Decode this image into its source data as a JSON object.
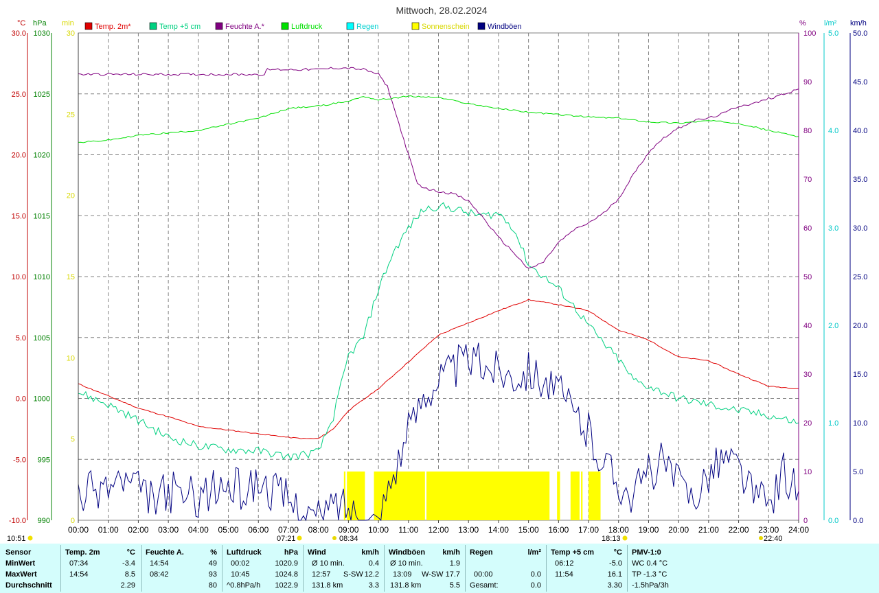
{
  "title": "Mittwoch, 28.02.2024",
  "legend": [
    {
      "label": "Temp. 2m*",
      "color": "#e00000"
    },
    {
      "label": "Temp +5 cm",
      "color": "#00d080"
    },
    {
      "label": "Feuchte A.*",
      "color": "#800080"
    },
    {
      "label": "Luftdruck",
      "color": "#00e000"
    },
    {
      "label": "Regen",
      "color": "#00ffff"
    },
    {
      "label": "Sonnenschein",
      "color": "#ffff00"
    },
    {
      "label": "Windböen",
      "color": "#000080"
    }
  ],
  "axis_units": {
    "temp": "°C",
    "pressure": "hPa",
    "sun": "min",
    "humidity": "%",
    "rain": "l/m²",
    "wind": "km/h"
  },
  "sun_events": {
    "sunrise": "07:21",
    "noon": "08:34",
    "sunset": "18:13",
    "moonrise": "10:51",
    "moonset": "22:40"
  },
  "colors": {
    "grid": "#808080",
    "temp_axis": "#c00000",
    "pressure_axis": "#008000",
    "sun_axis": "#d8d800",
    "hum_axis": "#800080",
    "rain_axis": "#00c8c8",
    "wind_axis": "#000080",
    "stats_bg": "#d4fdfc"
  },
  "chart_data": {
    "type": "line",
    "x_ticks": [
      "00:00",
      "01:00",
      "02:00",
      "03:00",
      "04:00",
      "05:00",
      "06:00",
      "07:00",
      "08:00",
      "09:00",
      "10:00",
      "11:00",
      "12:00",
      "13:00",
      "14:00",
      "15:00",
      "16:00",
      "17:00",
      "18:00",
      "19:00",
      "20:00",
      "21:00",
      "22:00",
      "23:00",
      "24:00"
    ],
    "axes": {
      "temp": {
        "unit": "°C",
        "range": [
          -10,
          30
        ],
        "ticks": [
          "30.0",
          "25.0",
          "20.0",
          "15.0",
          "10.0",
          "5.0",
          "0.0",
          "-5.0",
          "-10.0"
        ]
      },
      "pressure": {
        "unit": "hPa",
        "range": [
          990,
          1030
        ],
        "ticks": [
          "1030",
          "1025",
          "1020",
          "1015",
          "1010",
          "1005",
          "1000",
          "995",
          "990"
        ]
      },
      "sun": {
        "unit": "min",
        "range": [
          0,
          30
        ],
        "ticks": [
          "30",
          "25",
          "20",
          "15",
          "10",
          "5",
          "0"
        ]
      },
      "humidity": {
        "unit": "%",
        "range": [
          0,
          100
        ],
        "ticks": [
          "100",
          "90",
          "80",
          "70",
          "60",
          "50",
          "40",
          "30",
          "20",
          "10",
          "0"
        ]
      },
      "rain": {
        "unit": "l/m²",
        "range": [
          0,
          5
        ],
        "ticks": [
          "5.0",
          "4.0",
          "3.0",
          "2.0",
          "1.0",
          "0.0"
        ]
      },
      "wind": {
        "unit": "km/h",
        "range": [
          0,
          50
        ],
        "ticks": [
          "50.0",
          "45.0",
          "40.0",
          "35.0",
          "30.0",
          "25.0",
          "20.0",
          "15.0",
          "10.0",
          "5.0",
          "0.0"
        ]
      }
    },
    "series": [
      {
        "name": "Temp. 2m*",
        "axis": "temp",
        "color": "#e00000",
        "x": [
          0,
          1,
          2,
          3,
          4,
          5,
          6,
          7,
          7.5,
          8,
          8.5,
          9,
          10,
          11,
          12,
          13,
          14,
          15,
          16,
          17,
          18,
          19,
          20,
          21,
          22,
          23,
          24
        ],
        "values": [
          1.2,
          0.2,
          -0.8,
          -1.5,
          -2.3,
          -2.6,
          -2.9,
          -3.2,
          -3.3,
          -3.3,
          -2.5,
          -1.0,
          0.8,
          3.0,
          5.2,
          6.2,
          7.2,
          8.1,
          7.7,
          7.2,
          5.6,
          4.8,
          3.4,
          3.1,
          2.0,
          1.0,
          0.8
        ]
      },
      {
        "name": "Temp +5 cm",
        "axis": "temp",
        "color": "#00d080",
        "x": [
          0,
          1,
          2,
          3,
          4,
          5,
          6,
          7,
          8,
          8.5,
          9,
          9.5,
          10,
          10.5,
          11,
          11.5,
          12,
          12.5,
          13,
          13.5,
          14,
          14.5,
          15,
          15.5,
          16,
          16.5,
          17,
          17.5,
          18,
          18.5,
          19,
          20,
          21,
          22,
          23,
          24
        ],
        "values": [
          0.5,
          -0.5,
          -1.8,
          -3.2,
          -3.9,
          -4.2,
          -4.3,
          -4.8,
          -4.4,
          -1.5,
          3.5,
          5.0,
          9.0,
          12.0,
          14.0,
          15.5,
          15.8,
          15.6,
          15.2,
          15.0,
          15.2,
          14.0,
          11.0,
          10.0,
          9.0,
          7.6,
          6.0,
          4.5,
          3.2,
          1.5,
          1.0,
          0.0,
          -0.5,
          -1.0,
          -1.4,
          -2.0
        ]
      },
      {
        "name": "Feuchte A.*",
        "axis": "humidity",
        "color": "#800080",
        "x": [
          0,
          2,
          4,
          6.2,
          6.3,
          7,
          8,
          8.5,
          9,
          9.5,
          10,
          10.3,
          10.6,
          11,
          11.3,
          11.6,
          12,
          12.5,
          13,
          13.5,
          14,
          14.5,
          15,
          15.5,
          16,
          16.5,
          17,
          17.5,
          18,
          18.5,
          19,
          19.5,
          20,
          20.5,
          21,
          21.5,
          22,
          22.5,
          23,
          23.5,
          24
        ],
        "values": [
          91.5,
          91.5,
          91.5,
          91.5,
          92.5,
          92.5,
          92.5,
          92.8,
          92.8,
          92.5,
          91.5,
          89.0,
          83.0,
          75.0,
          69.0,
          68.0,
          67.5,
          67.0,
          65.5,
          62.0,
          58.0,
          55.0,
          51.5,
          53.0,
          57.0,
          59.5,
          61.0,
          63.0,
          66.0,
          71.0,
          75.5,
          78.5,
          80.5,
          82.0,
          82.5,
          83.5,
          85.0,
          85.5,
          86.5,
          87.5,
          88.5
        ]
      },
      {
        "name": "Luftdruck",
        "axis": "pressure",
        "color": "#00e000",
        "x": [
          0,
          1,
          2,
          3,
          4,
          5,
          6,
          7,
          8,
          9,
          9.5,
          10,
          11,
          12,
          13,
          14,
          15,
          16,
          17,
          18,
          19,
          20,
          21,
          22,
          23,
          24
        ],
        "values": [
          1021.0,
          1021.2,
          1021.6,
          1021.8,
          1022.0,
          1022.5,
          1023.0,
          1023.8,
          1024.0,
          1024.4,
          1024.8,
          1024.5,
          1024.8,
          1024.7,
          1024.2,
          1023.8,
          1023.5,
          1023.3,
          1023.1,
          1023.0,
          1022.7,
          1022.6,
          1022.8,
          1022.6,
          1022.0,
          1021.5
        ]
      },
      {
        "name": "Windböen",
        "axis": "wind",
        "color": "#000080",
        "x": [
          0,
          0.5,
          1,
          1.5,
          2,
          2.5,
          3,
          3.5,
          4,
          4.5,
          5,
          5.5,
          6,
          6.5,
          7,
          7.5,
          8,
          8.5,
          9,
          9.5,
          10,
          10.5,
          11,
          11.5,
          12,
          12.5,
          13,
          13.5,
          14,
          14.5,
          15,
          15.5,
          16,
          16.5,
          17,
          17.5,
          18,
          18.5,
          19,
          19.5,
          20,
          20.5,
          21,
          21.5,
          22,
          22.5,
          23,
          23.5,
          24
        ],
        "values": [
          2.5,
          3.0,
          3.5,
          4.0,
          3.0,
          2.0,
          3.0,
          2.5,
          2.5,
          3.0,
          3.5,
          3.0,
          4.0,
          3.0,
          2.0,
          1.0,
          0.0,
          1.5,
          1.5,
          0.0,
          0.0,
          5.0,
          9.0,
          13.0,
          14.5,
          15.5,
          16.5,
          16.0,
          15.5,
          15.0,
          15.5,
          14.5,
          13.0,
          11.0,
          9.0,
          6.0,
          4.0,
          2.5,
          5.0,
          6.0,
          3.5,
          2.5,
          5.0,
          6.5,
          5.5,
          2.5,
          1.5,
          5.0,
          3.0
        ]
      }
    ],
    "sunshine": {
      "name": "Sonnenschein",
      "axis": "sun",
      "color": "#ffff00",
      "intervals": [
        [
          8.85,
          8.9
        ],
        [
          8.95,
          9.55
        ],
        [
          9.85,
          11.55
        ],
        [
          11.6,
          15.7
        ],
        [
          15.95,
          16.05
        ],
        [
          16.4,
          16.7
        ],
        [
          16.75,
          16.8
        ],
        [
          17.0,
          17.4
        ]
      ],
      "value_min": 3
    },
    "rain": {
      "name": "Regen",
      "axis": "rain",
      "total": 0.0
    }
  },
  "stats": {
    "row_labels": [
      "Sensor",
      "MinWert",
      "MaxWert",
      "Durchschnitt"
    ],
    "temp2m": {
      "header": "Temp. 2m",
      "unit": "°C",
      "min_time": "07:34",
      "min": "-3.4",
      "max_time": "14:54",
      "max": "8.5",
      "avg": "2.29"
    },
    "feuchte": {
      "header": "Feuchte A.",
      "unit": "%",
      "min_time": "14:54",
      "min": "49",
      "max_time": "08:42",
      "max": "93",
      "avg": "80"
    },
    "luftdruck": {
      "header": "Luftdruck",
      "unit": "hPa",
      "min_time": "00:02",
      "min": "1020.9",
      "max_time": "10:45",
      "max": "1024.8",
      "trend": "^0.8hPa/h",
      "avg": "1022.9"
    },
    "wind": {
      "header": "Wind",
      "unit": "km/h",
      "row1_label": "Ø 10 min.",
      "row1_val": "0.4",
      "row2_time": "12:57",
      "row2_dir": "S-SW",
      "row2_val": "12.2",
      "row3_dist": "131.8 km",
      "row3_val": "3.3"
    },
    "windboeen": {
      "header": "Windböen",
      "unit": "km/h",
      "row1_label": "Ø 10 min.",
      "row1_val": "1.9",
      "row2_time": "13:09",
      "row2_dir": "W-SW",
      "row2_val": "17.7",
      "row3_dist": "131.8 km",
      "row3_val": "5.5"
    },
    "regen": {
      "header": "Regen",
      "unit": "l/m²",
      "row2_time": "00:00",
      "row2_val": "0.0",
      "row3_label": "Gesamt:",
      "row3_val": "0.0"
    },
    "temp5cm": {
      "header": "Temp +5 cm",
      "unit": "°C",
      "min_time": "06:12",
      "min": "-5.0",
      "max_time": "11:54",
      "max": "16.1",
      "avg": "3.30"
    },
    "pmv": {
      "header": "PMV-1:0",
      "wc": "WC 0.4 °C",
      "tp": "TP -1.3 °C",
      "trend": "-1.5hPa/3h"
    }
  }
}
